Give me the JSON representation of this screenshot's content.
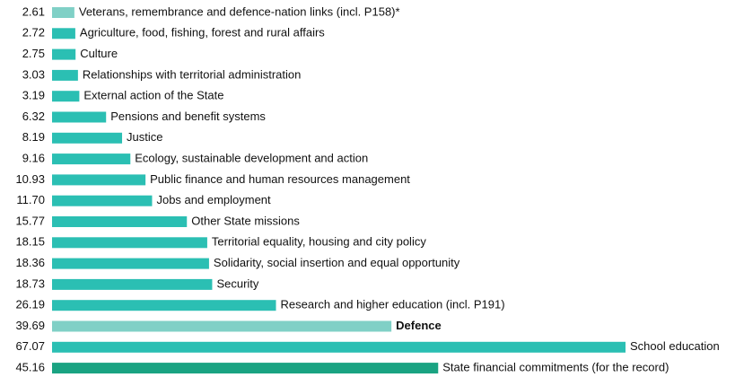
{
  "chart_data": {
    "type": "bar",
    "orientation": "horizontal",
    "categories": [
      "Veterans, remembrance and defence-nation links (incl. P158)*",
      "Agriculture, food, fishing, forest and rural affairs",
      "Culture",
      "Relationships with territorial administration",
      "External action of the State",
      "Pensions and benefit systems",
      "Justice",
      "Ecology, sustainable development and action",
      "Public finance and human resources management",
      "Jobs and employment",
      "Other State missions",
      "Territorial equality, housing and city policy",
      "Solidarity, social insertion and equal opportunity",
      "Security",
      "Research and higher education (incl. P191)",
      "Defence",
      "School education",
      "State financial commitments (for the record)"
    ],
    "values": [
      2.61,
      2.72,
      2.75,
      3.03,
      3.19,
      6.32,
      8.19,
      9.16,
      10.93,
      11.7,
      15.77,
      18.15,
      18.36,
      18.73,
      26.19,
      39.69,
      67.07,
      45.16
    ],
    "value_labels": [
      "2.61",
      "2.72",
      "2.75",
      "3.03",
      "3.19",
      "6.32",
      "8.19",
      "9.16",
      "10.93",
      "11.70",
      "15.77",
      "18.15",
      "18.36",
      "18.73",
      "26.19",
      "39.69",
      "67.07",
      "45.16"
    ],
    "colors": [
      "#80d0c6",
      "#2bbfb3",
      "#2bbfb3",
      "#2bbfb3",
      "#2bbfb3",
      "#2bbfb3",
      "#2bbfb3",
      "#2bbfb3",
      "#2bbfb3",
      "#2bbfb3",
      "#2bbfb3",
      "#2bbfb3",
      "#2bbfb3",
      "#2bbfb3",
      "#2bbfb3",
      "#80d0c6",
      "#2bbfb3",
      "#1aa382"
    ],
    "label_weights": [
      "normal",
      "normal",
      "normal",
      "normal",
      "normal",
      "normal",
      "normal",
      "normal",
      "normal",
      "normal",
      "normal",
      "normal",
      "normal",
      "normal",
      "normal",
      "bold",
      "normal",
      "normal"
    ]
  }
}
